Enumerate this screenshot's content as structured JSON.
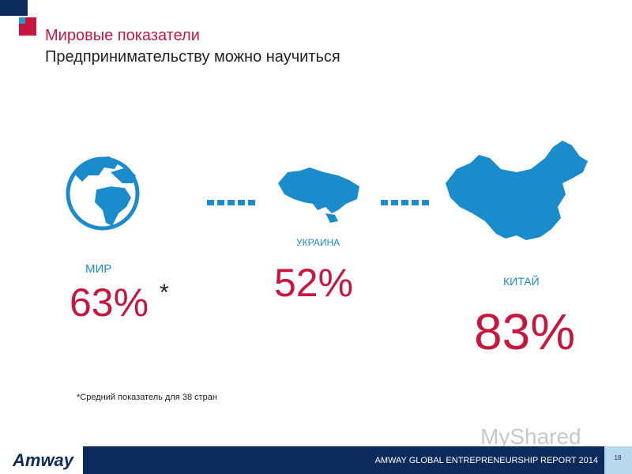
{
  "header": {
    "title": "Мировые показатели",
    "subtitle": "Предпринимательству можно научиться"
  },
  "items": [
    {
      "label": "МИР",
      "value": "63%",
      "mark": "*"
    },
    {
      "label": "УКРАИНА",
      "value": "52%"
    },
    {
      "label": "КИТАЙ",
      "value": "83%"
    }
  ],
  "footnote": "*Средний показатель для 38 стран",
  "footer": {
    "logo": "Amway",
    "report": "AMWAY GLOBAL ENTREPRENEURSHIP REPORT 2014",
    "page": "18"
  },
  "watermark": "MyShared"
}
